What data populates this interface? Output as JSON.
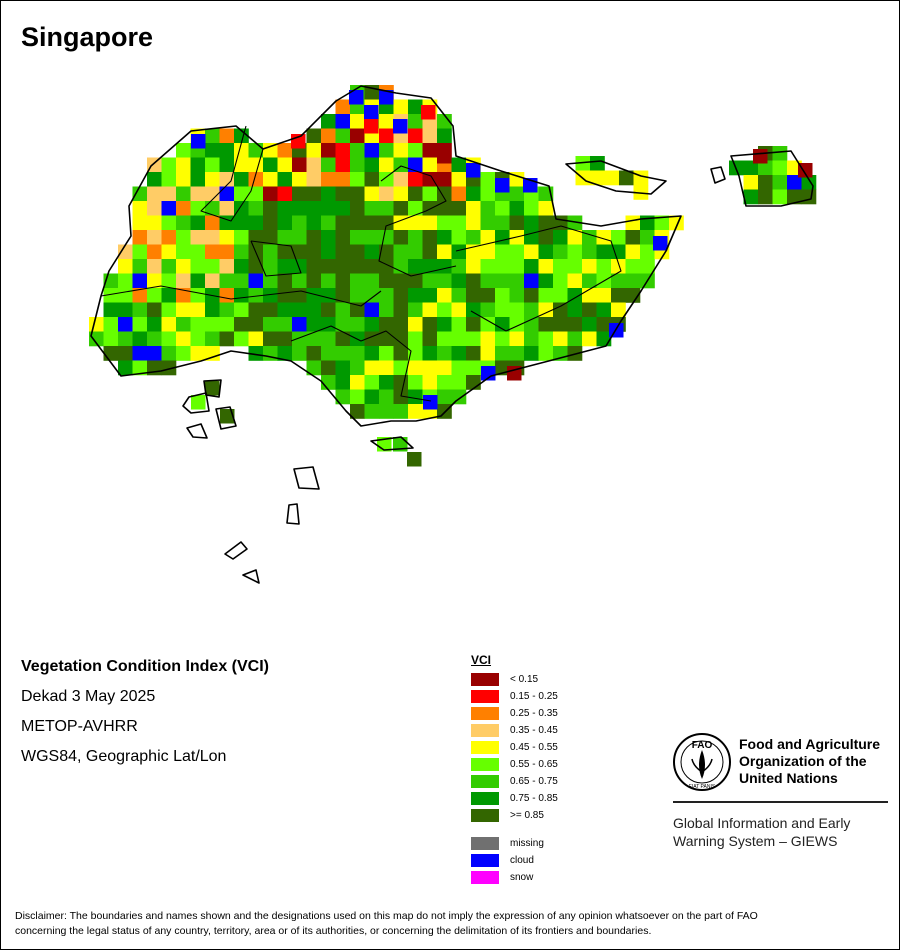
{
  "map": {
    "title": "Singapore"
  },
  "info": {
    "index_name": "Vegetation Condition Index (VCI)",
    "period": "Dekad 3 May 2025",
    "sensor": "METOP-AVHRR",
    "projection": "WGS84, Geographic Lat/Lon"
  },
  "legend": {
    "title": "VCI",
    "classes": [
      {
        "label": "< 0.15",
        "color": "#990000"
      },
      {
        "label": "0.15 - 0.25",
        "color": "#ff0000"
      },
      {
        "label": "0.25 - 0.35",
        "color": "#ff8000"
      },
      {
        "label": "0.35 - 0.45",
        "color": "#ffcc66"
      },
      {
        "label": "0.45 - 0.55",
        "color": "#ffff00"
      },
      {
        "label": "0.55 - 0.65",
        "color": "#66ff00"
      },
      {
        "label": "0.65 - 0.75",
        "color": "#33cc00"
      },
      {
        "label": "0.75 - 0.85",
        "color": "#009900"
      },
      {
        "label": ">= 0.85",
        "color": "#336600"
      }
    ],
    "special": [
      {
        "label": "missing",
        "color": "#707070"
      },
      {
        "label": "cloud",
        "color": "#0000ff"
      },
      {
        "label": "snow",
        "color": "#ff00ff"
      }
    ]
  },
  "organization": {
    "logo_icon": "fao-logo-icon",
    "logo_letters": "FAO",
    "logo_motto": "FIAT PANIS",
    "name_line1": "Food and Agriculture",
    "name_line2": "Organization of the",
    "name_line3": "United Nations",
    "system_line1": "Global Information and Early",
    "system_line2": "Warning System – GIEWS"
  },
  "disclaimer": {
    "line1": "Disclaimer: The boundaries and names shown and the designations used on this map do not imply the expression of any opinion whatsoever on the part of FAO",
    "line2": "concerning the legal status of any country, territory, area or of its authorities, or concerning the delimitation of its frontiers and boundaries."
  }
}
